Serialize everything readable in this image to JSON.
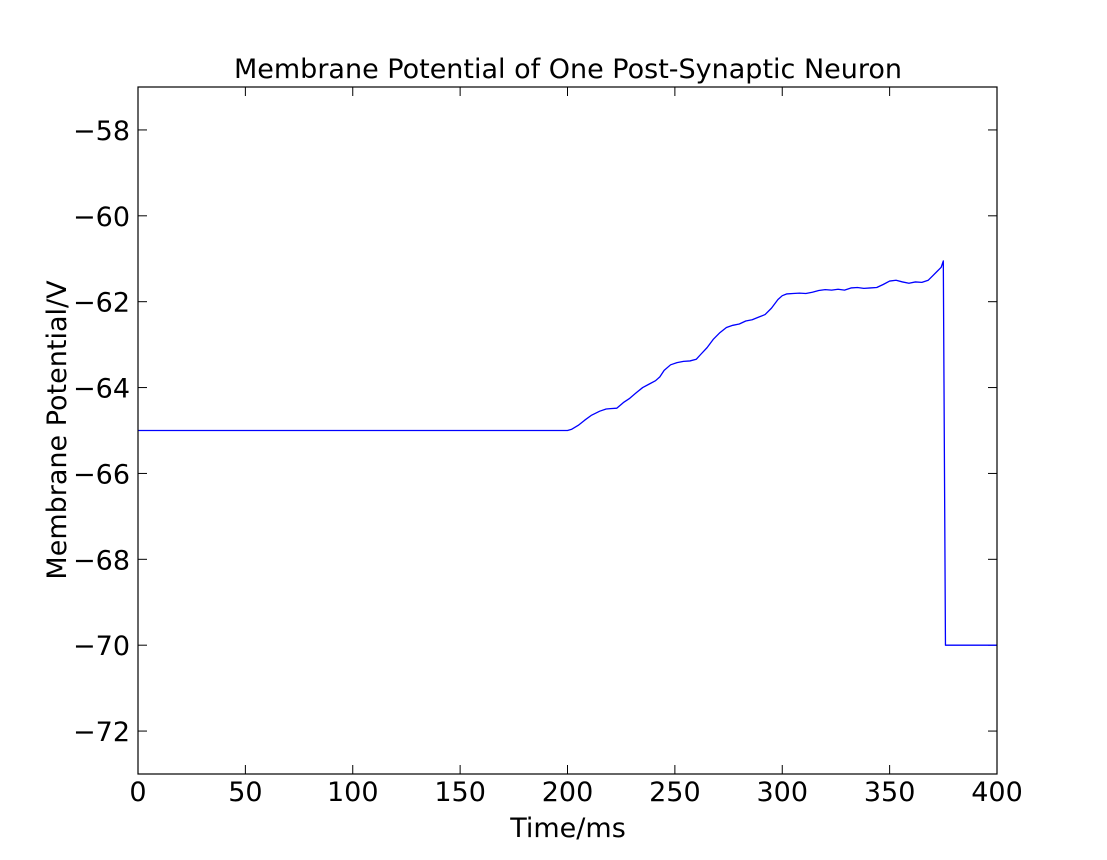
{
  "chart_data": {
    "type": "line",
    "title": "Membrane Potential of One Post-Synaptic Neuron",
    "xlabel": "Time/ms",
    "ylabel": "Membrane Potential/V",
    "xlim": [
      0,
      400
    ],
    "ylim": [
      -73,
      -57
    ],
    "xticks": [
      0,
      50,
      100,
      150,
      200,
      250,
      300,
      350,
      400
    ],
    "yticks": [
      -72,
      -70,
      -68,
      -66,
      -64,
      -62,
      -60,
      -58
    ],
    "xtick_labels": [
      "0",
      "50",
      "100",
      "150",
      "200",
      "250",
      "300",
      "350",
      "400"
    ],
    "ytick_labels": [
      "−72",
      "−70",
      "−68",
      "−66",
      "−64",
      "−62",
      "−60",
      "−58"
    ],
    "grid": false,
    "series": [
      {
        "color": "#0000ff",
        "x": [
          0,
          200,
          202,
          205,
          208,
          211,
          215,
          218,
          220,
          223,
          226,
          229,
          232,
          235,
          238,
          241,
          243,
          245,
          248,
          251,
          254,
          257,
          260,
          262,
          265,
          268,
          271,
          274,
          277,
          280,
          283,
          286,
          289,
          292,
          295,
          298,
          300,
          302,
          305,
          308,
          311,
          314,
          317,
          320,
          323,
          326,
          329,
          332,
          335,
          338,
          341,
          344,
          347,
          350,
          353,
          356,
          359,
          362,
          365,
          368,
          370,
          372,
          374,
          375,
          376,
          380,
          400
        ],
        "y": [
          -65.0,
          -65.0,
          -64.97,
          -64.88,
          -64.76,
          -64.65,
          -64.55,
          -64.5,
          -64.49,
          -64.48,
          -64.35,
          -64.25,
          -64.12,
          -64.0,
          -63.92,
          -63.84,
          -63.75,
          -63.6,
          -63.47,
          -63.42,
          -63.39,
          -63.38,
          -63.34,
          -63.23,
          -63.07,
          -62.87,
          -62.72,
          -62.6,
          -62.55,
          -62.52,
          -62.45,
          -62.42,
          -62.36,
          -62.3,
          -62.15,
          -61.95,
          -61.86,
          -61.82,
          -61.81,
          -61.8,
          -61.81,
          -61.78,
          -61.74,
          -61.72,
          -61.73,
          -61.71,
          -61.73,
          -61.68,
          -61.67,
          -61.69,
          -61.68,
          -61.67,
          -61.6,
          -61.52,
          -61.5,
          -61.54,
          -61.57,
          -61.54,
          -61.55,
          -61.5,
          -61.4,
          -61.3,
          -61.2,
          -61.05,
          -70.0,
          -70.0,
          -70.0
        ]
      }
    ]
  }
}
